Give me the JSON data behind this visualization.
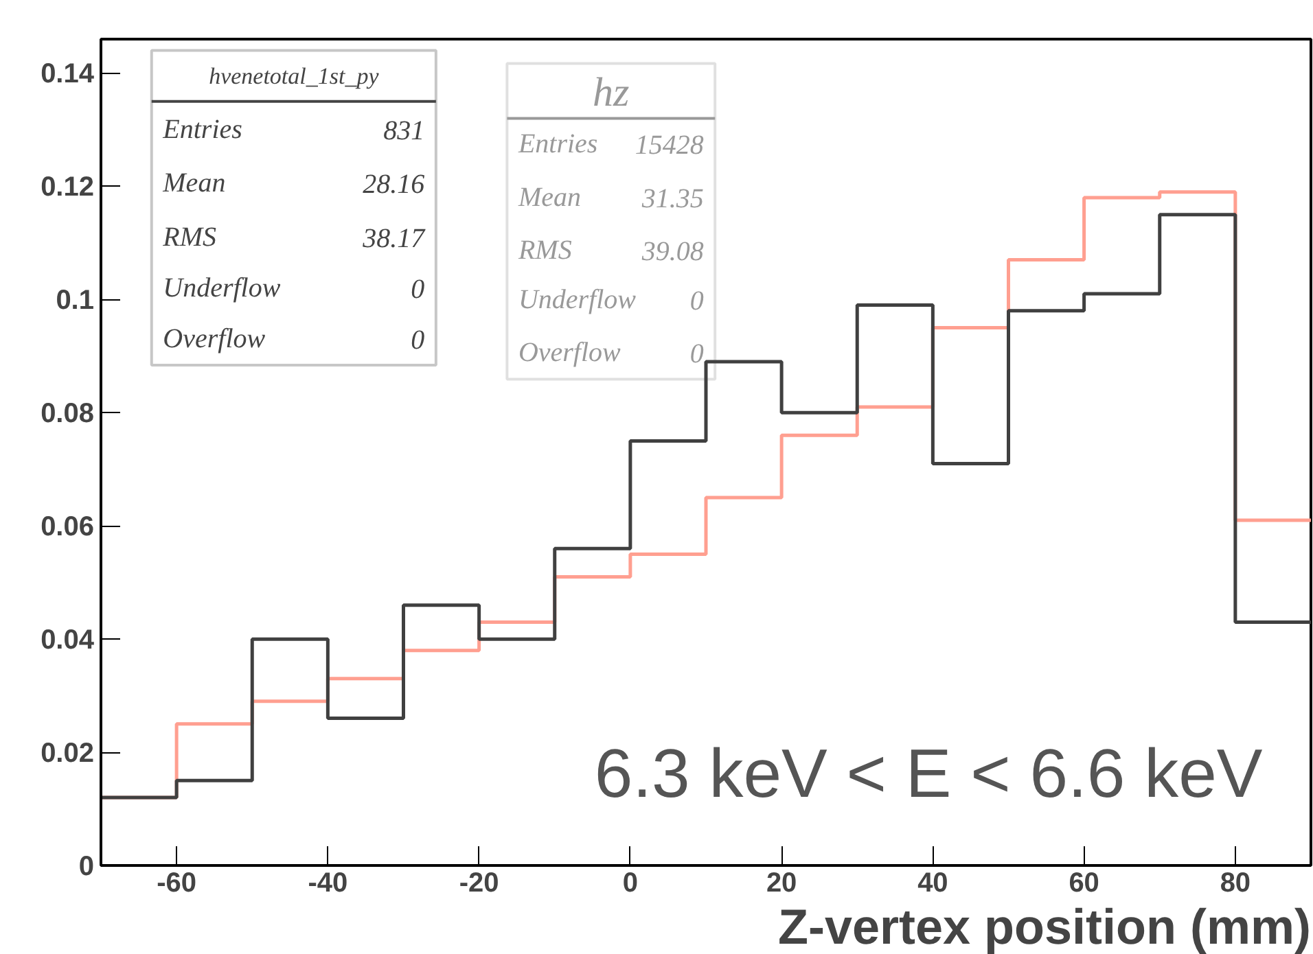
{
  "chart_data": {
    "type": "histogram",
    "bins": [
      -70,
      -60,
      -50,
      -40,
      -30,
      -20,
      -10,
      0,
      10,
      20,
      30,
      40,
      50,
      60,
      70,
      80,
      90
    ],
    "series": [
      {
        "color": "#ff9f90",
        "values": [
          0.012,
          0.025,
          0.029,
          0.033,
          0.038,
          0.043,
          0.051,
          0.055,
          0.065,
          0.076,
          0.081,
          0.095,
          0.107,
          0.118,
          0.119,
          0.061
        ]
      },
      {
        "color": "#404040",
        "values": [
          0.012,
          0.015,
          0.04,
          0.026,
          0.046,
          0.04,
          0.056,
          0.075,
          0.089,
          0.08,
          0.099,
          0.071,
          0.098,
          0.101,
          0.115,
          0.043
        ]
      }
    ],
    "xlim": [
      -70,
      90
    ],
    "ylim": [
      0,
      0.146
    ],
    "xticks": [
      -60,
      -40,
      -20,
      0,
      20,
      40,
      60,
      80
    ],
    "yticks": [
      0,
      0.02,
      0.04,
      0.06,
      0.08,
      0.1,
      0.12,
      0.14
    ],
    "xlabel": "Z-vertex position (mm)",
    "annotations": [
      "hvenetotal_1st_py",
      "Entries",
      "831",
      "Mean",
      "28.16",
      "RMS",
      "38.17",
      "Underflow",
      "0",
      "Overflow",
      "0",
      "hz",
      "Entries",
      "15428",
      "Mean",
      "31.35",
      "RMS",
      "39.08",
      "Underflow",
      "0",
      "Overflow",
      "0",
      "6.3 keV < E < 6.6 keV"
    ]
  }
}
